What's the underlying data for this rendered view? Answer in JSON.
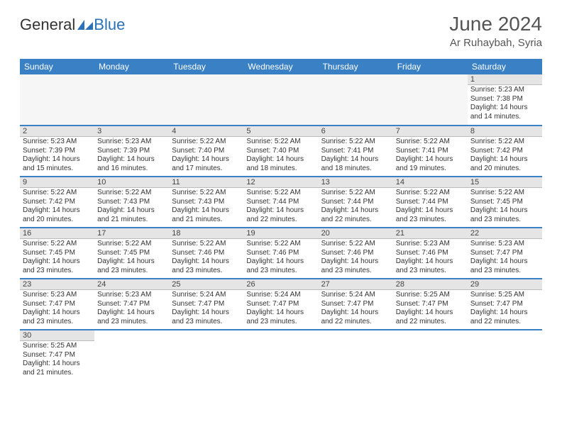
{
  "logo": {
    "word1": "General",
    "word2": "Blue"
  },
  "header": {
    "title": "June 2024",
    "location": "Ar Ruhaybah, Syria"
  },
  "columns": [
    "Sunday",
    "Monday",
    "Tuesday",
    "Wednesday",
    "Thursday",
    "Friday",
    "Saturday"
  ],
  "colors": {
    "header_bg": "#3a80c4",
    "header_text": "#ffffff",
    "daynum_bg": "#e5e5e5",
    "rule": "#3a80c4"
  },
  "weeks": [
    [
      null,
      null,
      null,
      null,
      null,
      null,
      {
        "n": "1",
        "sr": "Sunrise: 5:23 AM",
        "ss": "Sunset: 7:38 PM",
        "dl": "Daylight: 14 hours and 14 minutes."
      }
    ],
    [
      {
        "n": "2",
        "sr": "Sunrise: 5:23 AM",
        "ss": "Sunset: 7:39 PM",
        "dl": "Daylight: 14 hours and 15 minutes."
      },
      {
        "n": "3",
        "sr": "Sunrise: 5:23 AM",
        "ss": "Sunset: 7:39 PM",
        "dl": "Daylight: 14 hours and 16 minutes."
      },
      {
        "n": "4",
        "sr": "Sunrise: 5:22 AM",
        "ss": "Sunset: 7:40 PM",
        "dl": "Daylight: 14 hours and 17 minutes."
      },
      {
        "n": "5",
        "sr": "Sunrise: 5:22 AM",
        "ss": "Sunset: 7:40 PM",
        "dl": "Daylight: 14 hours and 18 minutes."
      },
      {
        "n": "6",
        "sr": "Sunrise: 5:22 AM",
        "ss": "Sunset: 7:41 PM",
        "dl": "Daylight: 14 hours and 18 minutes."
      },
      {
        "n": "7",
        "sr": "Sunrise: 5:22 AM",
        "ss": "Sunset: 7:41 PM",
        "dl": "Daylight: 14 hours and 19 minutes."
      },
      {
        "n": "8",
        "sr": "Sunrise: 5:22 AM",
        "ss": "Sunset: 7:42 PM",
        "dl": "Daylight: 14 hours and 20 minutes."
      }
    ],
    [
      {
        "n": "9",
        "sr": "Sunrise: 5:22 AM",
        "ss": "Sunset: 7:42 PM",
        "dl": "Daylight: 14 hours and 20 minutes."
      },
      {
        "n": "10",
        "sr": "Sunrise: 5:22 AM",
        "ss": "Sunset: 7:43 PM",
        "dl": "Daylight: 14 hours and 21 minutes."
      },
      {
        "n": "11",
        "sr": "Sunrise: 5:22 AM",
        "ss": "Sunset: 7:43 PM",
        "dl": "Daylight: 14 hours and 21 minutes."
      },
      {
        "n": "12",
        "sr": "Sunrise: 5:22 AM",
        "ss": "Sunset: 7:44 PM",
        "dl": "Daylight: 14 hours and 22 minutes."
      },
      {
        "n": "13",
        "sr": "Sunrise: 5:22 AM",
        "ss": "Sunset: 7:44 PM",
        "dl": "Daylight: 14 hours and 22 minutes."
      },
      {
        "n": "14",
        "sr": "Sunrise: 5:22 AM",
        "ss": "Sunset: 7:44 PM",
        "dl": "Daylight: 14 hours and 23 minutes."
      },
      {
        "n": "15",
        "sr": "Sunrise: 5:22 AM",
        "ss": "Sunset: 7:45 PM",
        "dl": "Daylight: 14 hours and 23 minutes."
      }
    ],
    [
      {
        "n": "16",
        "sr": "Sunrise: 5:22 AM",
        "ss": "Sunset: 7:45 PM",
        "dl": "Daylight: 14 hours and 23 minutes."
      },
      {
        "n": "17",
        "sr": "Sunrise: 5:22 AM",
        "ss": "Sunset: 7:45 PM",
        "dl": "Daylight: 14 hours and 23 minutes."
      },
      {
        "n": "18",
        "sr": "Sunrise: 5:22 AM",
        "ss": "Sunset: 7:46 PM",
        "dl": "Daylight: 14 hours and 23 minutes."
      },
      {
        "n": "19",
        "sr": "Sunrise: 5:22 AM",
        "ss": "Sunset: 7:46 PM",
        "dl": "Daylight: 14 hours and 23 minutes."
      },
      {
        "n": "20",
        "sr": "Sunrise: 5:22 AM",
        "ss": "Sunset: 7:46 PM",
        "dl": "Daylight: 14 hours and 23 minutes."
      },
      {
        "n": "21",
        "sr": "Sunrise: 5:23 AM",
        "ss": "Sunset: 7:46 PM",
        "dl": "Daylight: 14 hours and 23 minutes."
      },
      {
        "n": "22",
        "sr": "Sunrise: 5:23 AM",
        "ss": "Sunset: 7:47 PM",
        "dl": "Daylight: 14 hours and 23 minutes."
      }
    ],
    [
      {
        "n": "23",
        "sr": "Sunrise: 5:23 AM",
        "ss": "Sunset: 7:47 PM",
        "dl": "Daylight: 14 hours and 23 minutes."
      },
      {
        "n": "24",
        "sr": "Sunrise: 5:23 AM",
        "ss": "Sunset: 7:47 PM",
        "dl": "Daylight: 14 hours and 23 minutes."
      },
      {
        "n": "25",
        "sr": "Sunrise: 5:24 AM",
        "ss": "Sunset: 7:47 PM",
        "dl": "Daylight: 14 hours and 23 minutes."
      },
      {
        "n": "26",
        "sr": "Sunrise: 5:24 AM",
        "ss": "Sunset: 7:47 PM",
        "dl": "Daylight: 14 hours and 23 minutes."
      },
      {
        "n": "27",
        "sr": "Sunrise: 5:24 AM",
        "ss": "Sunset: 7:47 PM",
        "dl": "Daylight: 14 hours and 22 minutes."
      },
      {
        "n": "28",
        "sr": "Sunrise: 5:25 AM",
        "ss": "Sunset: 7:47 PM",
        "dl": "Daylight: 14 hours and 22 minutes."
      },
      {
        "n": "29",
        "sr": "Sunrise: 5:25 AM",
        "ss": "Sunset: 7:47 PM",
        "dl": "Daylight: 14 hours and 22 minutes."
      }
    ],
    [
      {
        "n": "30",
        "sr": "Sunrise: 5:25 AM",
        "ss": "Sunset: 7:47 PM",
        "dl": "Daylight: 14 hours and 21 minutes."
      },
      null,
      null,
      null,
      null,
      null,
      null
    ]
  ]
}
